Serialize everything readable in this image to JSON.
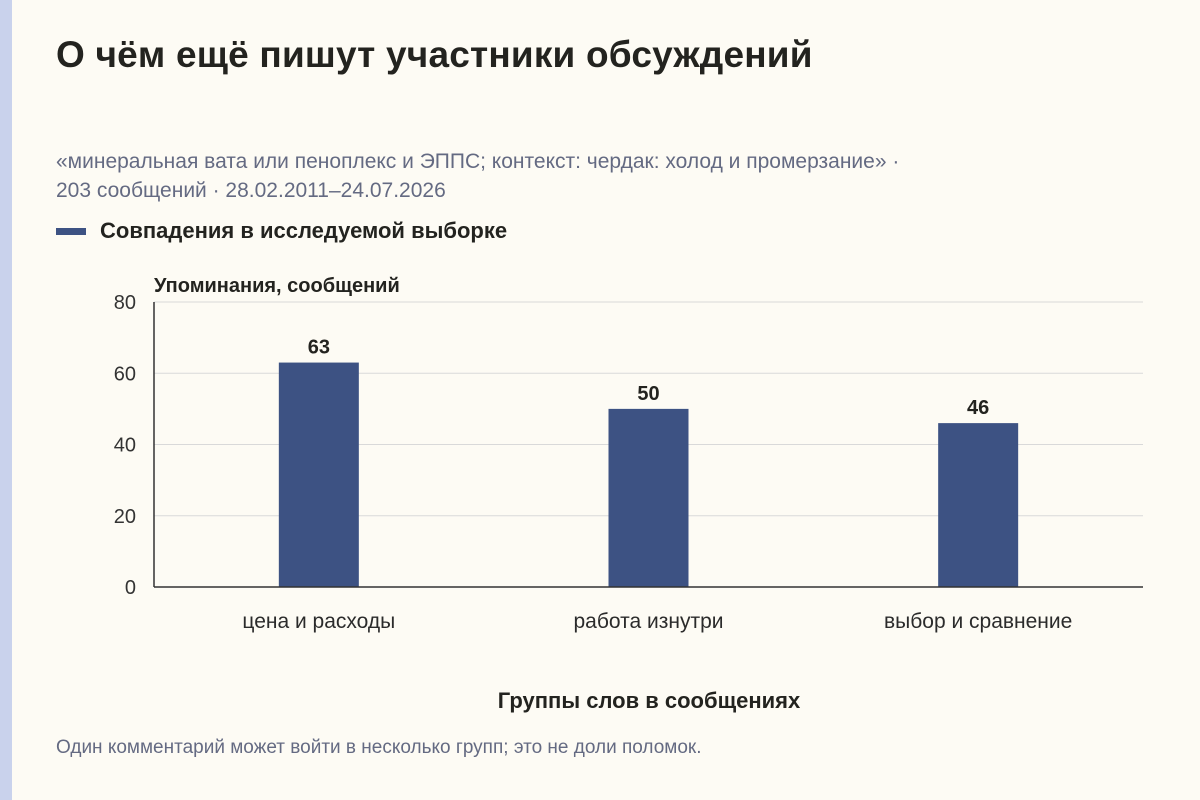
{
  "title": "О чём ещё пишут участники обсуждений",
  "subtitle_line1": "«минеральная вата или пеноплекс и ЭППС; контекст: чердак: холод и промерзание» ·",
  "subtitle_line2": "203 сообщений · 28.02.2011–24.07.2026",
  "footnote": "Один комментарий может войти в несколько групп; это не доли поломок.",
  "colors": {
    "bar": "#3d5283",
    "background": "#fdfbf4",
    "grid": "#d9d9d9"
  },
  "chart_data": {
    "type": "bar",
    "title": "О чём ещё пишут участники обсуждений",
    "categories": [
      "цена и расходы",
      "работа изнутри",
      "выбор и сравнение"
    ],
    "series": [
      {
        "name": "Совпадения в исследуемой выборке",
        "values": [
          63,
          50,
          46
        ]
      }
    ],
    "ylabel": "Упоминания, сообщений",
    "xlabel": "Группы слов в сообщениях",
    "ylim": [
      0,
      80
    ],
    "yticks": [
      0,
      20,
      40,
      60,
      80
    ],
    "grid": true,
    "legend_position": "top-left",
    "data_labels": true
  }
}
